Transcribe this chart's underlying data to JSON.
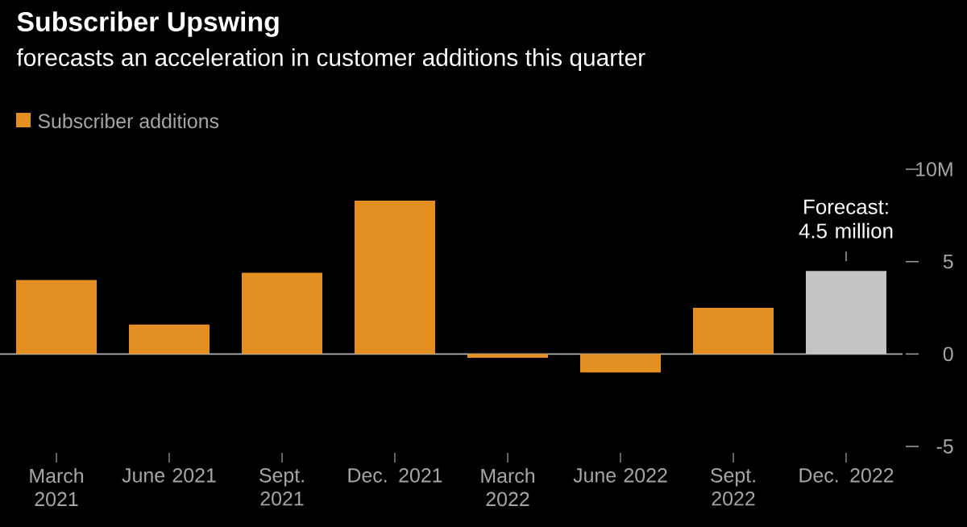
{
  "chart_data": {
    "type": "bar",
    "title": "Subscriber Upswing",
    "subtitle": "forecasts an acceleration in customer additions this quarter",
    "categories": [
      "March 2021",
      "June 2021",
      "Sept. 2021",
      "Dec. 2021",
      "March 2022",
      "June 2022",
      "Sept. 2022",
      "Dec. 2022"
    ],
    "series": [
      {
        "name": "Subscriber additions",
        "color": "#e38f22",
        "values": [
          4.0,
          1.6,
          4.4,
          8.3,
          -0.2,
          -1.0,
          2.5,
          4.5
        ],
        "colors": [
          "#e38f22",
          "#e38f22",
          "#e38f22",
          "#e38f22",
          "#e38f22",
          "#e38f22",
          "#e38f22",
          "#c4c4c4"
        ]
      }
    ],
    "ylim": [
      -5,
      10
    ],
    "yticks": [
      {
        "value": 10,
        "label": "10M"
      },
      5,
      0,
      -5
    ],
    "ref_lines": [
      {
        "axis": "y",
        "value": 0,
        "color": "#b4b4b4"
      }
    ],
    "annotations": [
      {
        "text": "Forecast: 4.5 million",
        "x": "Dec. 2022",
        "y": 4.5
      }
    ],
    "legend": "top left",
    "grid": false
  }
}
